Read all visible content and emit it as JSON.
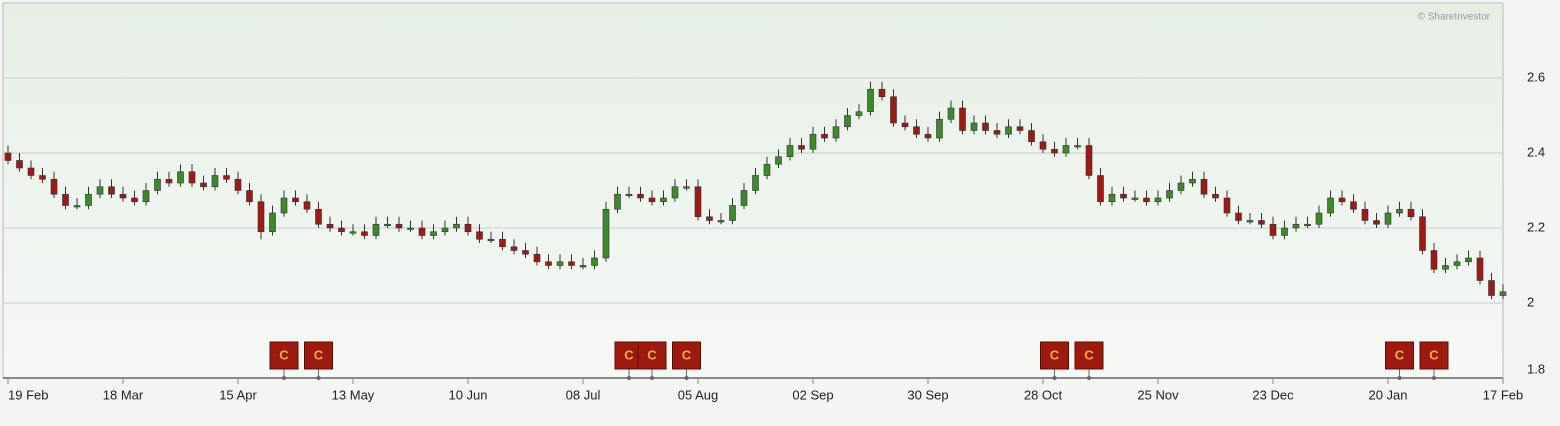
{
  "chart_data": {
    "type": "candlestick",
    "credit": "© ShareInvestor",
    "categories": [
      "19 Feb",
      null,
      null,
      null,
      null,
      null,
      null,
      null,
      null,
      null,
      "18 Mar",
      null,
      null,
      null,
      null,
      null,
      null,
      null,
      null,
      null,
      "15 Apr",
      null,
      null,
      null,
      null,
      null,
      null,
      null,
      null,
      null,
      "13 May",
      null,
      null,
      null,
      null,
      null,
      null,
      null,
      null,
      null,
      "10 Jun",
      null,
      null,
      null,
      null,
      null,
      null,
      null,
      null,
      null,
      "08 Jul",
      null,
      null,
      null,
      null,
      null,
      null,
      null,
      null,
      null,
      "05 Aug",
      null,
      null,
      null,
      null,
      null,
      null,
      null,
      null,
      null,
      "02 Sep",
      null,
      null,
      null,
      null,
      null,
      null,
      null,
      null,
      null,
      "30 Sep",
      null,
      null,
      null,
      null,
      null,
      null,
      null,
      null,
      null,
      "28 Oct",
      null,
      null,
      null,
      null,
      null,
      null,
      null,
      null,
      null,
      "25 Nov",
      null,
      null,
      null,
      null,
      null,
      null,
      null,
      null,
      null,
      "23 Dec",
      null,
      null,
      null,
      null,
      null,
      null,
      null,
      null,
      null,
      "20 Jan",
      null,
      null,
      null,
      null,
      null,
      null,
      null,
      null,
      null,
      "17 Feb"
    ],
    "open": [
      2.4,
      2.38,
      2.36,
      2.34,
      2.33,
      2.29,
      2.26,
      2.26,
      2.29,
      2.31,
      2.29,
      2.28,
      2.27,
      2.3,
      2.33,
      2.32,
      2.35,
      2.32,
      2.31,
      2.34,
      2.33,
      2.3,
      2.27,
      2.19,
      2.24,
      2.28,
      2.27,
      2.25,
      2.21,
      2.2,
      2.19,
      2.19,
      2.18,
      2.21,
      2.21,
      2.2,
      2.2,
      2.18,
      2.19,
      2.2,
      2.21,
      2.19,
      2.17,
      2.17,
      2.15,
      2.14,
      2.13,
      2.11,
      2.1,
      2.11,
      2.1,
      2.1,
      2.12,
      2.25,
      2.29,
      2.29,
      2.28,
      2.27,
      2.28,
      2.31,
      2.31,
      2.23,
      2.22,
      2.22,
      2.26,
      2.3,
      2.34,
      2.37,
      2.39,
      2.42,
      2.41,
      2.45,
      2.44,
      2.47,
      2.5,
      2.51,
      2.57,
      2.55,
      2.48,
      2.47,
      2.45,
      2.44,
      2.49,
      2.52,
      2.46,
      2.48,
      2.46,
      2.45,
      2.47,
      2.46,
      2.43,
      2.41,
      2.4,
      2.42,
      2.42,
      2.34,
      2.27,
      2.29,
      2.28,
      2.28,
      2.27,
      2.28,
      2.3,
      2.32,
      2.33,
      2.29,
      2.28,
      2.24,
      2.22,
      2.22,
      2.21,
      2.18,
      2.2,
      2.21,
      2.21,
      2.24,
      2.28,
      2.27,
      2.25,
      2.22,
      2.21,
      2.24,
      2.25,
      2.23,
      2.14,
      2.09,
      2.1,
      2.11,
      2.12,
      2.06,
      2.02
    ],
    "high": [
      2.42,
      2.4,
      2.38,
      2.36,
      2.35,
      2.31,
      2.28,
      2.31,
      2.33,
      2.33,
      2.31,
      2.3,
      2.32,
      2.35,
      2.35,
      2.37,
      2.37,
      2.34,
      2.36,
      2.36,
      2.35,
      2.32,
      2.29,
      2.26,
      2.3,
      2.3,
      2.29,
      2.27,
      2.23,
      2.22,
      2.21,
      2.21,
      2.23,
      2.23,
      2.23,
      2.22,
      2.22,
      2.21,
      2.22,
      2.23,
      2.23,
      2.21,
      2.19,
      2.19,
      2.17,
      2.16,
      2.15,
      2.13,
      2.13,
      2.13,
      2.12,
      2.14,
      2.27,
      2.31,
      2.31,
      2.31,
      2.3,
      2.3,
      2.33,
      2.33,
      2.33,
      2.25,
      2.24,
      2.28,
      2.32,
      2.36,
      2.39,
      2.41,
      2.44,
      2.44,
      2.47,
      2.47,
      2.49,
      2.52,
      2.53,
      2.59,
      2.59,
      2.57,
      2.5,
      2.49,
      2.47,
      2.51,
      2.54,
      2.54,
      2.5,
      2.5,
      2.48,
      2.49,
      2.49,
      2.48,
      2.45,
      2.43,
      2.44,
      2.44,
      2.44,
      2.36,
      2.31,
      2.31,
      2.3,
      2.3,
      2.3,
      2.32,
      2.34,
      2.35,
      2.35,
      2.31,
      2.3,
      2.26,
      2.24,
      2.24,
      2.23,
      2.22,
      2.23,
      2.23,
      2.26,
      2.3,
      2.3,
      2.29,
      2.27,
      2.24,
      2.26,
      2.27,
      2.27,
      2.25,
      2.16,
      2.12,
      2.13,
      2.14,
      2.14,
      2.08,
      2.05
    ],
    "low": [
      2.37,
      2.35,
      2.33,
      2.32,
      2.28,
      2.25,
      2.25,
      2.25,
      2.28,
      2.28,
      2.27,
      2.26,
      2.26,
      2.29,
      2.31,
      2.31,
      2.31,
      2.3,
      2.3,
      2.32,
      2.29,
      2.26,
      2.17,
      2.18,
      2.23,
      2.26,
      2.24,
      2.2,
      2.19,
      2.18,
      2.18,
      2.17,
      2.17,
      2.2,
      2.19,
      2.19,
      2.17,
      2.17,
      2.18,
      2.19,
      2.18,
      2.16,
      2.16,
      2.14,
      2.13,
      2.12,
      2.1,
      2.09,
      2.09,
      2.09,
      2.09,
      2.09,
      2.11,
      2.24,
      2.28,
      2.27,
      2.26,
      2.26,
      2.27,
      2.3,
      2.22,
      2.21,
      2.21,
      2.21,
      2.25,
      2.29,
      2.33,
      2.36,
      2.38,
      2.4,
      2.4,
      2.43,
      2.43,
      2.46,
      2.49,
      2.5,
      2.54,
      2.47,
      2.46,
      2.44,
      2.43,
      2.43,
      2.48,
      2.45,
      2.45,
      2.45,
      2.44,
      2.44,
      2.45,
      2.42,
      2.4,
      2.39,
      2.39,
      2.41,
      2.33,
      2.26,
      2.26,
      2.27,
      2.27,
      2.26,
      2.26,
      2.27,
      2.29,
      2.31,
      2.28,
      2.27,
      2.23,
      2.21,
      2.21,
      2.2,
      2.17,
      2.17,
      2.19,
      2.2,
      2.2,
      2.23,
      2.26,
      2.24,
      2.21,
      2.2,
      2.2,
      2.23,
      2.22,
      2.13,
      2.08,
      2.08,
      2.09,
      2.1,
      2.05,
      2.01,
      2.01
    ],
    "close": [
      2.38,
      2.36,
      2.34,
      2.33,
      2.29,
      2.26,
      2.26,
      2.29,
      2.31,
      2.29,
      2.28,
      2.27,
      2.3,
      2.33,
      2.32,
      2.35,
      2.32,
      2.31,
      2.34,
      2.33,
      2.3,
      2.27,
      2.19,
      2.24,
      2.28,
      2.27,
      2.25,
      2.21,
      2.2,
      2.19,
      2.19,
      2.18,
      2.21,
      2.21,
      2.2,
      2.2,
      2.18,
      2.19,
      2.2,
      2.21,
      2.19,
      2.17,
      2.17,
      2.15,
      2.14,
      2.13,
      2.11,
      2.1,
      2.11,
      2.1,
      2.1,
      2.12,
      2.25,
      2.29,
      2.29,
      2.28,
      2.27,
      2.28,
      2.31,
      2.31,
      2.23,
      2.22,
      2.22,
      2.26,
      2.3,
      2.34,
      2.37,
      2.39,
      2.42,
      2.41,
      2.45,
      2.44,
      2.47,
      2.5,
      2.51,
      2.57,
      2.55,
      2.48,
      2.47,
      2.45,
      2.44,
      2.49,
      2.52,
      2.46,
      2.48,
      2.46,
      2.45,
      2.47,
      2.46,
      2.43,
      2.41,
      2.4,
      2.42,
      2.42,
      2.34,
      2.27,
      2.29,
      2.28,
      2.28,
      2.27,
      2.28,
      2.3,
      2.32,
      2.33,
      2.29,
      2.28,
      2.24,
      2.22,
      2.22,
      2.21,
      2.18,
      2.2,
      2.21,
      2.21,
      2.24,
      2.28,
      2.27,
      2.25,
      2.22,
      2.21,
      2.24,
      2.25,
      2.23,
      2.14,
      2.09,
      2.1,
      2.11,
      2.12,
      2.06,
      2.02,
      2.03
    ],
    "up_color": "#3d8a2c",
    "down_color": "#9e1a14",
    "markers": [
      {
        "label": "C",
        "x": 24
      },
      {
        "label": "C",
        "x": 27
      },
      {
        "label": "C",
        "x": 54
      },
      {
        "label": "C",
        "x": 56
      },
      {
        "label": "C",
        "x": 59
      },
      {
        "label": "C",
        "x": 91
      },
      {
        "label": "C",
        "x": 94
      },
      {
        "label": "C",
        "x": 121
      },
      {
        "label": "C",
        "x": 124
      }
    ],
    "ylim": [
      1.8,
      2.8
    ],
    "yticks": [
      1.8,
      2,
      2.2,
      2.4,
      2.6
    ],
    "grid": true
  }
}
